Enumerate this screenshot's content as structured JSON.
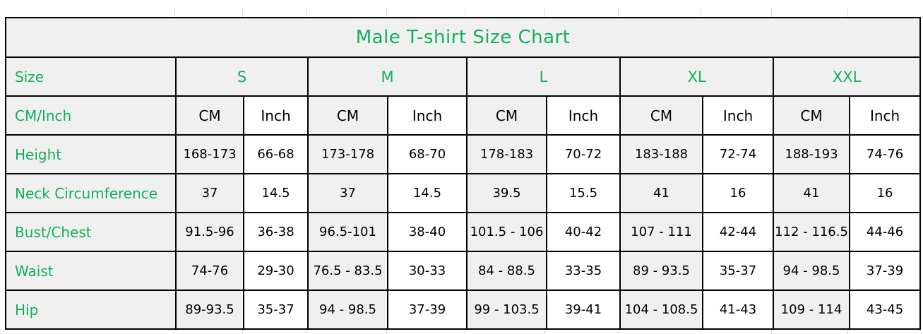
{
  "chart_data": {
    "type": "table",
    "title": "Male T-shirt Size Chart",
    "corner_labels": {
      "size": "Size",
      "units": "CM/Inch"
    },
    "size_groups": [
      "S",
      "M",
      "L",
      "XL",
      "XXL"
    ],
    "unit_headers": [
      "CM",
      "Inch",
      "CM",
      "Inch",
      "CM",
      "Inch",
      "CM",
      "Inch",
      "CM",
      "Inch"
    ],
    "rows": [
      {
        "label": "Height",
        "values": [
          "168-173",
          "66-68",
          "173-178",
          "68-70",
          "178-183",
          "70-72",
          "183-188",
          "72-74",
          "188-193",
          "74-76"
        ]
      },
      {
        "label": "Neck Circumference",
        "values": [
          "37",
          "14.5",
          "37",
          "14.5",
          "39.5",
          "15.5",
          "41",
          "16",
          "41",
          "16"
        ]
      },
      {
        "label": "Bust/Chest",
        "values": [
          "91.5-96",
          "36-38",
          "96.5-101",
          "38-40",
          "101.5 - 106",
          "40-42",
          "107 - 111",
          "42-44",
          "112 - 116.5",
          "44-46"
        ]
      },
      {
        "label": "Waist",
        "values": [
          "74-76",
          "29-30",
          "76.5 - 83.5",
          "30-33",
          "84 - 88.5",
          "33-35",
          "89 - 93.5",
          "35-37",
          "94 - 98.5",
          "37-39"
        ]
      },
      {
        "label": "Hip",
        "values": [
          "89-93.5",
          "35-37",
          "94 - 98.5",
          "37-39",
          "99 - 103.5",
          "39-41",
          "104 - 108.5",
          "41-43",
          "109 - 114",
          "43-45"
        ]
      }
    ],
    "colors": {
      "header_text": "#12b05a",
      "cell_text": "#000000",
      "grid_border": "#000000",
      "shaded_cell_bg": "#f0f0f0",
      "unshaded_cell_bg": "#ffffff",
      "faint_gridline": "#d9d9d9"
    },
    "layout_hints": {
      "label_column_alignment": "left",
      "value_alignment": "center"
    }
  }
}
